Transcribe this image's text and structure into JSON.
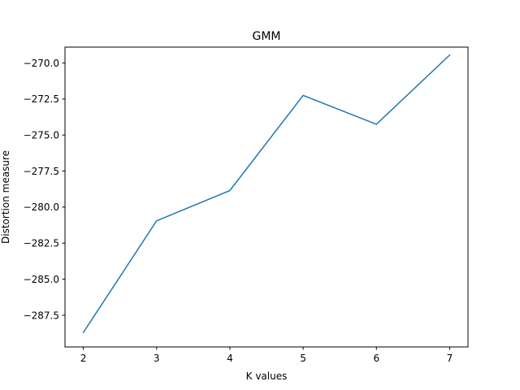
{
  "chart_data": {
    "type": "line",
    "title": "GMM",
    "xlabel": "K values",
    "ylabel": "Distortion measure",
    "x": [
      2,
      3,
      4,
      5,
      6,
      7
    ],
    "series": [
      {
        "values": [
          -288.7,
          -280.95,
          -278.85,
          -272.25,
          -274.25,
          -269.45
        ],
        "color": "#1f77b4"
      }
    ],
    "xlim": [
      1.75,
      7.25
    ],
    "ylim": [
      -289.7,
      -268.9
    ],
    "xticks": [
      2,
      3,
      4,
      5,
      6,
      7
    ],
    "xtick_labels": [
      "2",
      "3",
      "4",
      "5",
      "6",
      "7"
    ],
    "yticks": [
      -287.5,
      -285.0,
      -282.5,
      -280.0,
      -277.5,
      -275.0,
      -272.5,
      -270.0
    ],
    "ytick_labels": [
      "−287.5",
      "−285.0",
      "−282.5",
      "−280.0",
      "−277.5",
      "−275.0",
      "−272.5",
      "−270.0"
    ],
    "grid": false,
    "legend": "none"
  }
}
